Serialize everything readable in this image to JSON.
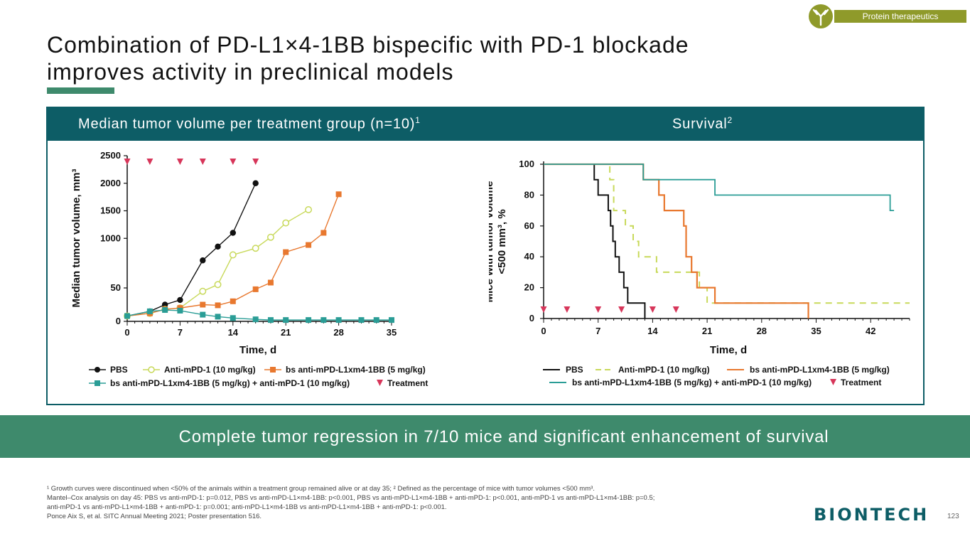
{
  "title_line1": "Combination of PD-L1×4-1BB bispecific with PD-1 blockade",
  "title_line2": "improves activity in preclinical models",
  "badge": "Protein therapeutics",
  "panel_left_title": "Median tumor volume per treatment group (n=10)",
  "panel_left_sup": "1",
  "panel_right_title": "Survival",
  "panel_right_sup": "2",
  "banner": "Complete tumor regression in 7/10 mice and significant enhancement of survival",
  "footnotes": [
    "¹ Growth curves were discontinued when <50% of the animals within a treatment group remained alive or at day 35; ² Defined as the percentage of mice with tumor volumes <500 mm³.",
    "Mantel–Cox analysis on day 45: PBS vs anti-mPD-1: p=0.012, PBS vs anti-mPD-L1×m4-1BB: p<0.001, PBS vs anti-mPD-L1×m4-1BB + anti-mPD-1: p<0.001, anti-mPD-1 vs anti-mPD-L1×m4-1BB: p=0.5;",
    "anti-mPD-1 vs anti-mPD-L1×m4-1BB + anti-mPD-1: p=0.001; anti-mPD-L1×m4-1BB vs anti-mPD-L1×m4-1BB + anti-mPD-1: p<0.001.",
    "Ponce Aix S, et al. SITC Annual Meeting 2021; Poster presentation 516."
  ],
  "logo": "BIONTECH",
  "page_number": "123",
  "colors": {
    "teal_dark": "#0d5d66",
    "green": "#3e8a6c",
    "olive": "#8f9a2a",
    "pbs": "#111111",
    "antipd1": "#c8d95a",
    "bs": "#e8782f",
    "combo": "#2a9d96",
    "treatment": "#d7365a"
  },
  "chart_data": [
    {
      "type": "line",
      "title": "Median tumor volume per treatment group (n=10)",
      "xlabel": "Time, d",
      "ylabel": "Median tumor volume, mm³",
      "xlim": [
        0,
        36
      ],
      "ylim": [
        0,
        2500
      ],
      "y_axis_break": "values 0–100 linearly scaled in lower segment; 100–2500 in upper segment",
      "xticks": [
        0,
        7,
        14,
        21,
        28,
        35
      ],
      "yticks": [
        0,
        50,
        1000,
        1500,
        2000,
        2500
      ],
      "ytick_labels": [
        "0",
        "50",
        "1000",
        "1500",
        "2000",
        "2500"
      ],
      "series": [
        {
          "name": "PBS",
          "x": [
            0,
            3,
            5,
            7,
            10,
            12,
            14,
            17
          ],
          "y": [
            8,
            15,
            25,
            32,
            600,
            850,
            1100,
            2000
          ]
        },
        {
          "name": "Anti-mPD-1 (10 mg/kg)",
          "x": [
            0,
            3,
            5,
            7,
            10,
            12,
            14,
            17,
            19,
            21,
            24
          ],
          "y": [
            8,
            12,
            18,
            20,
            45,
            55,
            700,
            820,
            1020,
            1280,
            1520
          ]
        },
        {
          "name": "bs anti-mPD-L1xm4-1BB (5 mg/kg)",
          "x": [
            0,
            3,
            5,
            7,
            10,
            12,
            14,
            17,
            19,
            21,
            24,
            26,
            28
          ],
          "y": [
            8,
            12,
            18,
            20,
            25,
            24,
            30,
            48,
            58,
            750,
            880,
            1100,
            1800
          ]
        },
        {
          "name": "bs anti-mPD-L1xm4-1BB (5 mg/kg) + anti-mPD-1 (10 mg/kg)",
          "x": [
            0,
            3,
            5,
            7,
            10,
            12,
            14,
            17,
            19,
            21,
            24,
            26,
            28,
            31,
            33,
            35
          ],
          "y": [
            8,
            15,
            17,
            16,
            10,
            7,
            5,
            3,
            2,
            2,
            2,
            2,
            2,
            2,
            2,
            2
          ]
        }
      ],
      "treatment_days": [
        0,
        3,
        7,
        10,
        14,
        17
      ],
      "legend": [
        "PBS",
        "Anti-mPD-1 (10 mg/kg)",
        "bs anti-mPD-L1xm4-1BB (5 mg/kg)",
        "bs anti-mPD-L1xm4-1BB (5 mg/kg) + anti-mPD-1 (10 mg/kg)",
        "Treatment"
      ]
    },
    {
      "type": "line",
      "title": "Survival",
      "xlabel": "Time, d",
      "ylabel_line1": "Mice with tumor volume",
      "ylabel_line2": "<500 mm³, %",
      "xlim": [
        0,
        47
      ],
      "ylim": [
        0,
        100
      ],
      "xticks": [
        0,
        7,
        14,
        21,
        28,
        35,
        42
      ],
      "yticks": [
        0,
        20,
        40,
        60,
        80,
        100
      ],
      "series": [
        {
          "name": "PBS",
          "step_x": [
            0,
            6.5,
            7,
            8.3,
            8.6,
            8.9,
            9.2,
            9.7,
            10.3,
            10.8,
            13
          ],
          "step_y": [
            100,
            90,
            80,
            70,
            60,
            50,
            40,
            30,
            20,
            10,
            0
          ]
        },
        {
          "name": "Anti-mPD-1 (10 mg/kg)",
          "step_x": [
            0,
            8.5,
            9,
            10.5,
            11.5,
            12.2,
            13,
            14.5,
            20,
            21
          ],
          "step_y": [
            100,
            90,
            70,
            60,
            50,
            40,
            40,
            30,
            20,
            10
          ],
          "end_x": 47
        },
        {
          "name": "bs anti-mPD-L1xm4-1BB (5 mg/kg)",
          "step_x": [
            0,
            12.8,
            14,
            14.8,
            15.5,
            18,
            18.3,
            19,
            19.7,
            20.5,
            22,
            34
          ],
          "step_y": [
            100,
            90,
            90,
            80,
            70,
            60,
            40,
            30,
            20,
            20,
            10,
            0
          ]
        },
        {
          "name": "bs anti-mPD-L1xm4-1BB (5 mg/kg) + anti-mPD-1 (10 mg/kg)",
          "step_x": [
            0,
            12.8,
            22,
            44.5
          ],
          "step_y": [
            100,
            90,
            80,
            70
          ],
          "end_x": 45
        }
      ],
      "treatment_days": [
        0,
        3,
        7,
        10,
        14,
        17
      ],
      "legend": [
        "PBS",
        "Anti-mPD-1 (10 mg/kg)",
        "bs anti-mPD-L1xm4-1BB (5 mg/kg)",
        "bs anti-mPD-L1xm4-1BB (5 mg/kg) + anti-mPD-1 (10 mg/kg)",
        "Treatment"
      ]
    }
  ]
}
